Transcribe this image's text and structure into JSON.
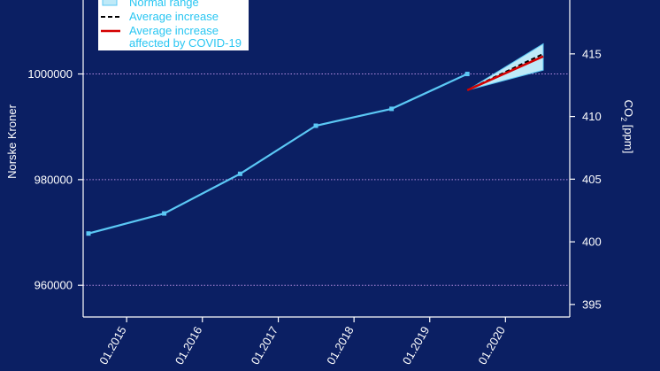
{
  "chart_data": {
    "type": "line",
    "categories": [
      "01.2015",
      "01.2016",
      "01.2017",
      "01.2018",
      "01.2019",
      "01.2020"
    ],
    "ylabel_left": "Norske Kroner",
    "ylabel_right_main": "CO",
    "ylabel_right_sub": "2",
    "ylabel_right_unit": " [ppm]",
    "y_left_ticks": [
      "960000",
      "980000",
      "1000000"
    ],
    "y_left_tick_values": [
      960000,
      980000,
      1000000
    ],
    "y_right_ticks": [
      "395",
      "400",
      "405",
      "410",
      "415"
    ],
    "y_right_tick_values": [
      395,
      400,
      405,
      410,
      415
    ],
    "x_dates": [
      "2014-07",
      "2015-07",
      "2016-07",
      "2017-07",
      "2018-07",
      "2019-07"
    ],
    "series": [
      {
        "values": [
          969800,
          973600,
          981100,
          990200,
          993400,
          1000000
        ],
        "color": "#5bc8f5"
      }
    ],
    "projection": {
      "x_dates": [
        "2019-07",
        "2020-07"
      ],
      "average_increase_ppm": [
        412.1,
        415.0
      ],
      "covid_affected_ppm": [
        412.1,
        414.8
      ],
      "normal_range_ppm": {
        "low": [
          412.1,
          413.7
        ],
        "high": [
          412.1,
          415.8
        ]
      }
    },
    "gridlines_left": [
      960000,
      980000,
      1000000
    ],
    "ylim_left": [
      954000,
      1014000
    ],
    "ylim_right": [
      394,
      419.3
    ],
    "legend": {
      "position": "top-left",
      "items": [
        {
          "label": "Normal range",
          "color": "#bfeaf8"
        },
        {
          "label": "Average increase",
          "color": "#000000"
        },
        {
          "label": "Average increase",
          "label2": "affected by COVID-19",
          "color": "#d40000"
        }
      ]
    },
    "colors": {
      "background": "#0b1f63",
      "line": "#5bc8f5",
      "grid": "#b48be0",
      "axis": "#ffffff",
      "legend_text": "#29c6f2",
      "band": "#bfeaf8"
    }
  }
}
